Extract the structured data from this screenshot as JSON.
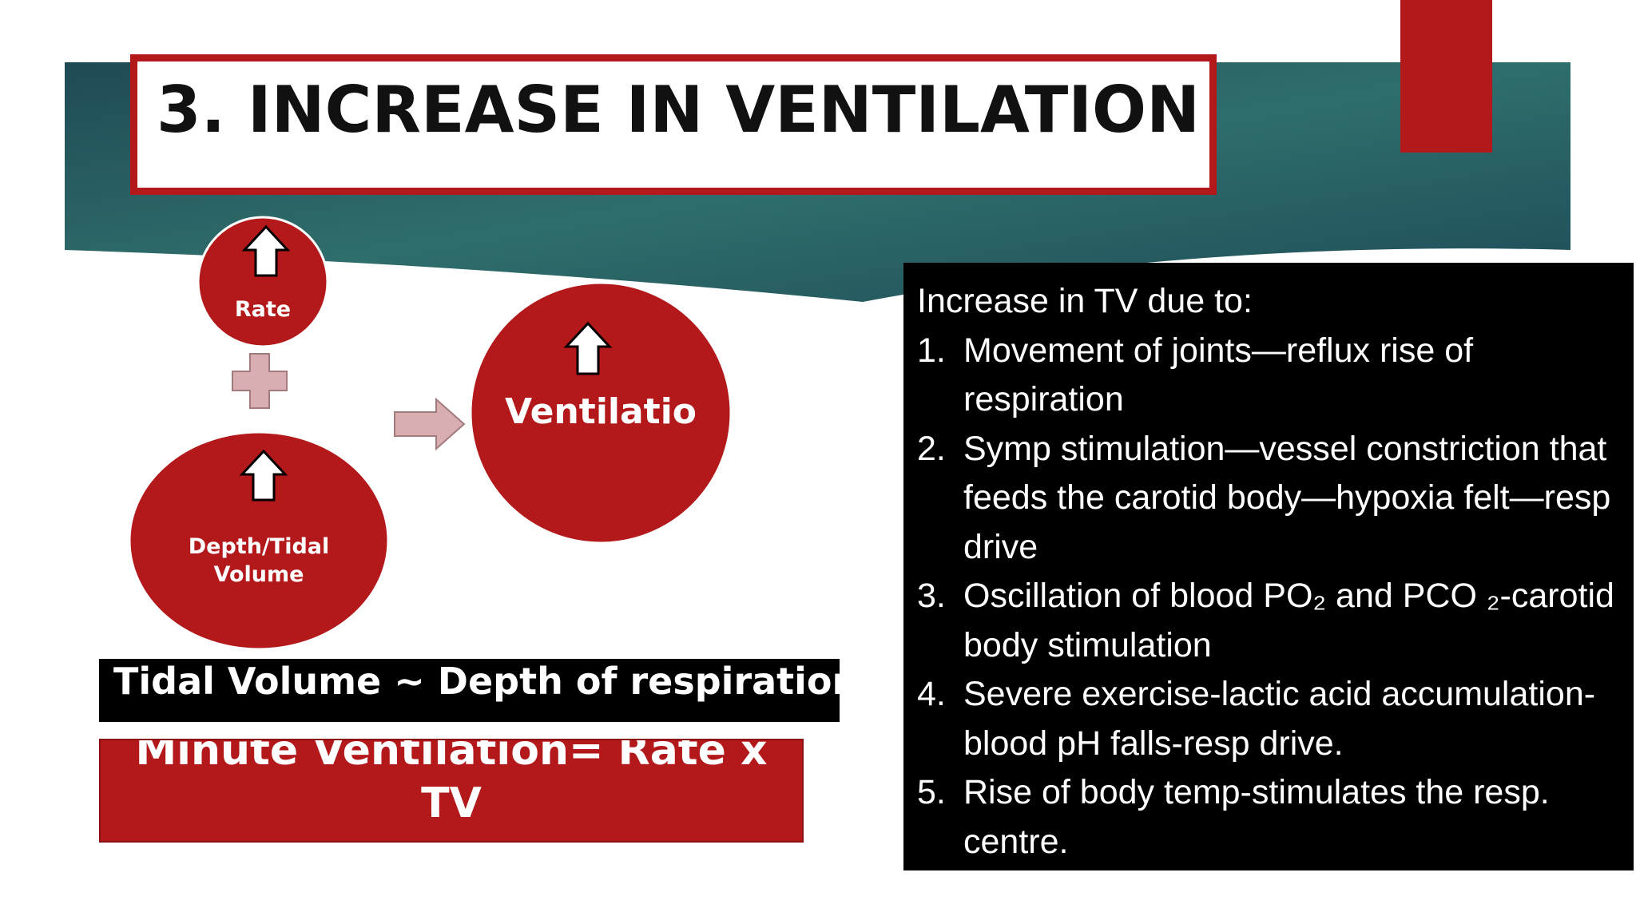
{
  "header": {
    "title": "3. INCREASE IN VENTILATION"
  },
  "diagram": {
    "rate": "Rate",
    "depth": "Depth/Tidal Volume",
    "result": "Ventilatio"
  },
  "formula": {
    "tidal": "Tidal Volume ~ Depth of respiration",
    "minute": "Minute Ventilation= Rate x TV"
  },
  "notes": {
    "intro": "Increase in TV due to:",
    "items": [
      {
        "number": "1.",
        "text": "Movement of joints—reflux rise of respiration"
      },
      {
        "number": "2.",
        "text": "Symp stimulation—vessel constriction that feeds the carotid body—hypoxia felt—resp drive"
      },
      {
        "number": "3.",
        "text": "Oscillation of blood PO₂ and PCO ₂-carotid body stimulation"
      },
      {
        "number": "4.",
        "text": "Severe exercise-lactic acid accumulation-blood pH falls-resp drive."
      },
      {
        "number": "5.",
        "text": "Rise of body temp-stimulates the resp. centre."
      }
    ]
  }
}
